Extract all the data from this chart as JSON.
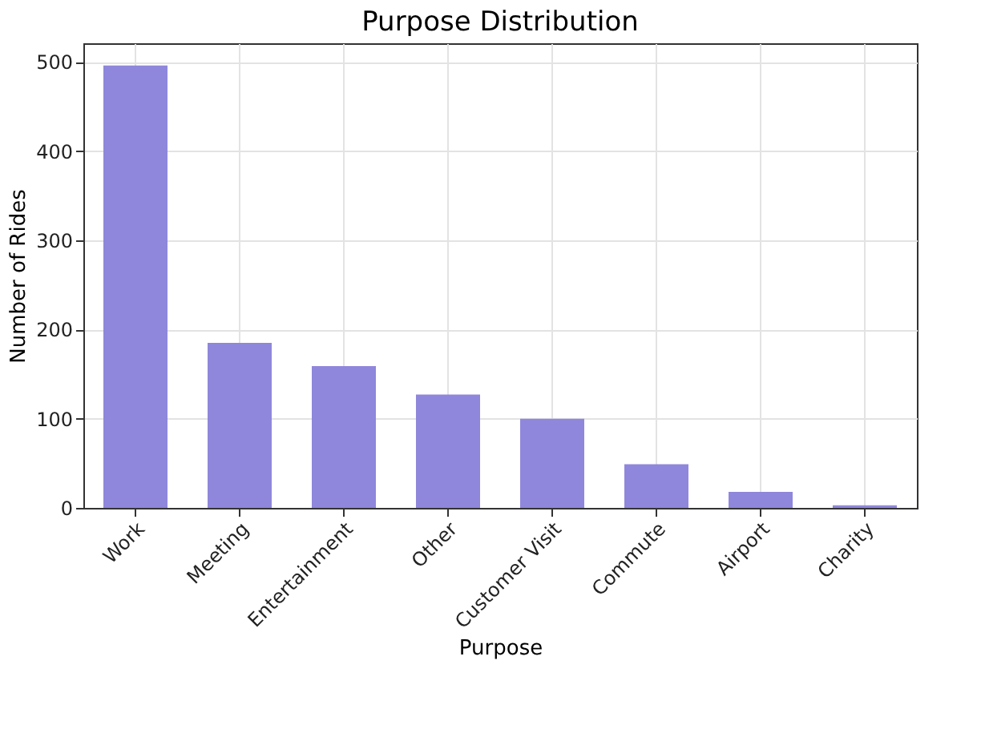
{
  "chart_data": {
    "type": "bar",
    "title": "Purpose Distribution",
    "xlabel": "Purpose",
    "ylabel": "Number of Rides",
    "categories": [
      "Work",
      "Meeting",
      "Entertainment",
      "Other",
      "Customer Visit",
      "Commute",
      "Airport",
      "Charity"
    ],
    "values": [
      496,
      185,
      159,
      127,
      100,
      49,
      18,
      3
    ],
    "color": "#8f87db",
    "ylim": [
      0,
      521
    ],
    "yticks": [
      0,
      100,
      200,
      300,
      400,
      500
    ],
    "grid": true
  }
}
